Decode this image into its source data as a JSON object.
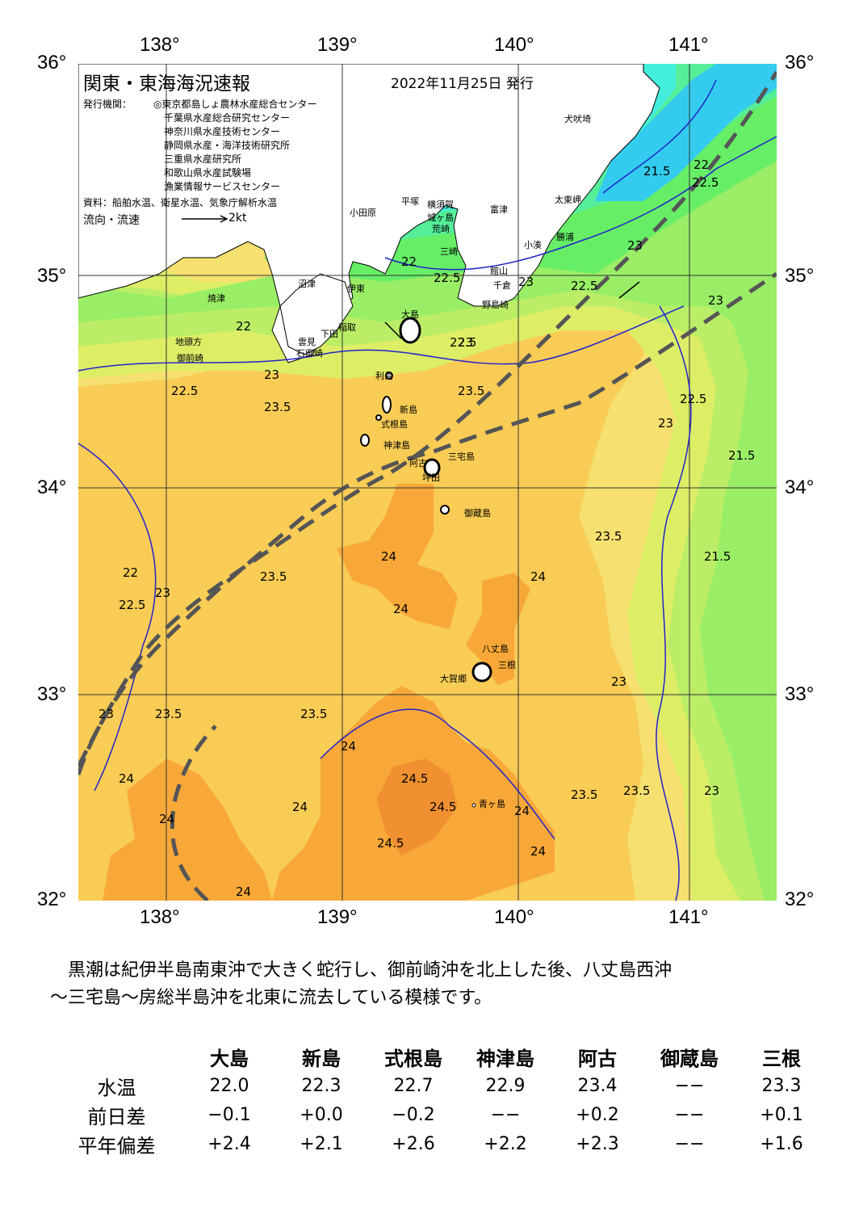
{
  "header": {
    "title": "関東・東海海況速報",
    "date": "2022年11月25日 発行",
    "issuer_label": "発行機関：",
    "issuers": [
      "◎東京都島しょ農林水産総合センター",
      "千葉県水産総合研究センター",
      "神奈川県水産技術センター",
      "静岡県水産・海洋技術研究所",
      "三重県水産研究所",
      "和歌山県水産試験場",
      "漁業情報サービスセンター"
    ],
    "source": "資料：船舶水温、衛星水温、気象庁解析水温",
    "legend_label": "流向・流速",
    "legend_unit": "2kt"
  },
  "axes": {
    "lon_labels": [
      "138°",
      "139°",
      "140°",
      "141°"
    ],
    "lat_labels": [
      "36°",
      "35°",
      "34°",
      "33°",
      "32°"
    ]
  },
  "map_labels": {
    "place_names": [
      "犬吠埼",
      "太東岬",
      "平塚",
      "横須賀",
      "城ヶ島",
      "荒崎",
      "富津",
      "小田原",
      "小湊",
      "勝浦",
      "館山",
      "千倉",
      "野島崎",
      "三崎",
      "沼津",
      "伊東",
      "焼津",
      "稲取",
      "下田",
      "石廊崎",
      "地頭方",
      "御前崎",
      "大島",
      "利島",
      "新島",
      "式根島",
      "神津島",
      "三宅島",
      "阿古",
      "坪田",
      "御蔵島",
      "八丈島",
      "三根",
      "大賀郷",
      "青ヶ島",
      "雲見"
    ],
    "contours": [
      "22",
      "22.5",
      "22",
      "22.5",
      "23",
      "23.5",
      "23",
      "23.5",
      "22.5",
      "23",
      "22.5",
      "23",
      "21.5",
      "22",
      "22.5",
      "23",
      "22.5",
      "21.5",
      "21.5",
      "23",
      "22",
      "22.5",
      "23",
      "23.5",
      "24",
      "24.5",
      "24",
      "24.5",
      "24",
      "24",
      "23.5",
      "23",
      "23.5",
      "24",
      "24",
      "24",
      "24",
      "24",
      "24.5",
      "24",
      "23.5",
      "23.5",
      "23",
      "23.5",
      "23"
    ]
  },
  "colors": {
    "sea_19": "#33ccee",
    "sea_20": "#44eedd",
    "sea_20_5": "#55ee99",
    "sea_21": "#66ee66",
    "sea_21_5": "#99ee66",
    "sea_22": "#bbee66",
    "sea_22_5": "#ddee66",
    "sea_23": "#f5e070",
    "sea_23_5": "#f8cc55",
    "sea_24": "#f8a838",
    "sea_24_5": "#f09030",
    "kuroshio_axis": "#555555",
    "contour": "#2222cc"
  },
  "note": {
    "line1": "黒潮は紀伊半島南東沖で大きく蛇行し、御前崎沖を北上した後、八丈島西沖",
    "line2": "～三宅島～房総半島沖を北東に流去している模様です。"
  },
  "table": {
    "columns": [
      "大島",
      "新島",
      "式根島",
      "神津島",
      "阿古",
      "御蔵島",
      "三根"
    ],
    "rows": [
      {
        "label": "水温",
        "values": [
          "22.0",
          "22.3",
          "22.7",
          "22.9",
          "23.4",
          "−−",
          "23.3"
        ]
      },
      {
        "label": "前日差",
        "values": [
          "−0.1",
          "+0.0",
          "−0.2",
          "−−",
          "+0.2",
          "−−",
          "+0.1"
        ]
      },
      {
        "label": "平年偏差",
        "values": [
          "+2.4",
          "+2.1",
          "+2.6",
          "+2.2",
          "+2.3",
          "−−",
          "+1.6"
        ]
      }
    ]
  }
}
